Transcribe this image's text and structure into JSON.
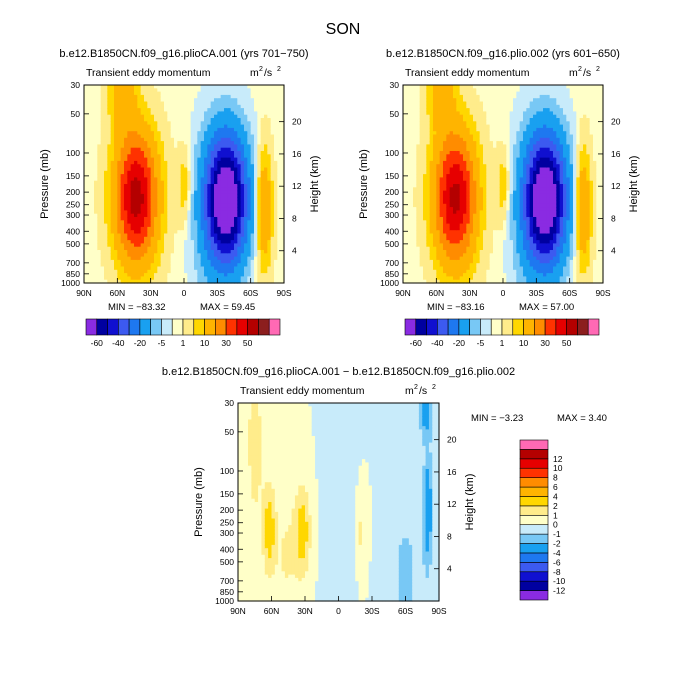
{
  "season": "SON",
  "contour_levels_top": [
    -60,
    -50,
    -40,
    -30,
    -20,
    -10,
    -5,
    -1,
    1,
    5,
    10,
    20,
    30,
    40,
    50,
    60
  ],
  "colors_top": [
    "#8a2be2",
    "#0000a0",
    "#1010d0",
    "#3c5af0",
    "#1e78f0",
    "#19a0f0",
    "#78c8f5",
    "#c8ebfa",
    "#ffffc8",
    "#ffec8b",
    "#ffd700",
    "#ffb400",
    "#ff8c00",
    "#ff3200",
    "#e60000",
    "#b40000",
    "#8c1e1e",
    "#ff69b4"
  ],
  "contour_levels_diff": [
    -12,
    -10,
    -8,
    -6,
    -4,
    -2,
    -1,
    0,
    1,
    2,
    4,
    6,
    8,
    10,
    12
  ],
  "colors_diff": [
    "#8a2be2",
    "#0000a0",
    "#1010d0",
    "#3c5af0",
    "#1e78f0",
    "#19a0f0",
    "#78c8f5",
    "#c8ebfa",
    "#ffffc8",
    "#ffec8b",
    "#ffd700",
    "#ffb400",
    "#ff8c00",
    "#ff3200",
    "#e60000",
    "#b40000",
    "#ff69b4"
  ],
  "chart_data": [
    {
      "type": "heatmap",
      "case": "b.e12.B1850CN.f09_g16.plioCA.001 (yrs 701−750)",
      "subtitle_left": "Transient eddy momentum",
      "units_base": "m",
      "units_sup1": "2",
      "units_mid": "/s",
      "units_sup2": "2",
      "ylabel": "Pressure (mb)",
      "ylabel_right": "Height (km)",
      "y_ticks": [
        "30",
        "50",
        "100",
        "150",
        "200",
        "250",
        "300",
        "400",
        "500",
        "700",
        "850",
        "1000"
      ],
      "y_values": [
        30,
        50,
        100,
        150,
        200,
        250,
        300,
        400,
        500,
        700,
        850,
        1000
      ],
      "height_ticks": [
        "20",
        "16",
        "12",
        "8",
        "4"
      ],
      "height_values": [
        20,
        16,
        12,
        8,
        4
      ],
      "x_ticks": [
        "90N",
        "60N",
        "30N",
        "0",
        "30S",
        "60S",
        "90S"
      ],
      "x_values": [
        90,
        60,
        30,
        0,
        -30,
        -60,
        -90
      ],
      "min_label": "MIN = −83.32",
      "max_label": "MAX = 59.45",
      "min": -83.32,
      "max": 59.45,
      "features": [
        {
          "lat": 43,
          "p": 220,
          "amp": 55,
          "wlat": 13,
          "wz": 5.5
        },
        {
          "lat": -38,
          "p": 230,
          "amp": -80,
          "wlat": 13,
          "wz": 5.5
        },
        {
          "lat": 0,
          "p": 180,
          "amp": 9,
          "wlat": 4,
          "wz": 3
        },
        {
          "lat": -72,
          "p": 270,
          "amp": 21,
          "wlat": 5,
          "wz": 5
        },
        {
          "lat": 55,
          "p": 35,
          "amp": 17,
          "wlat": 8,
          "wz": 3
        },
        {
          "lat": -20,
          "p": 500,
          "amp": -4,
          "wlat": 10,
          "wz": 9
        }
      ]
    },
    {
      "type": "heatmap",
      "case": "b.e12.B1850CN.f09_g16.plio.002 (yrs 601−650)",
      "subtitle_left": "Transient eddy momentum",
      "units_base": "m",
      "units_sup1": "2",
      "units_mid": "/s",
      "units_sup2": "2",
      "ylabel": "Pressure (mb)",
      "ylabel_right": "Height (km)",
      "y_ticks": [
        "30",
        "50",
        "100",
        "150",
        "200",
        "250",
        "300",
        "400",
        "500",
        "700",
        "850",
        "1000"
      ],
      "y_values": [
        30,
        50,
        100,
        150,
        200,
        250,
        300,
        400,
        500,
        700,
        850,
        1000
      ],
      "height_ticks": [
        "20",
        "16",
        "12",
        "8",
        "4"
      ],
      "height_values": [
        20,
        16,
        12,
        8,
        4
      ],
      "x_ticks": [
        "90N",
        "60N",
        "30N",
        "0",
        "30S",
        "60S",
        "90S"
      ],
      "x_values": [
        90,
        60,
        30,
        0,
        -30,
        -60,
        -90
      ],
      "min_label": "MIN = −83.16",
      "max_label": "MAX = 57.00",
      "min": -83.16,
      "max": 57.0,
      "features": [
        {
          "lat": 43,
          "p": 220,
          "amp": 53,
          "wlat": 13,
          "wz": 5.5
        },
        {
          "lat": -38,
          "p": 230,
          "amp": -80,
          "wlat": 13,
          "wz": 5.5
        },
        {
          "lat": 0,
          "p": 180,
          "amp": 9,
          "wlat": 4,
          "wz": 3
        },
        {
          "lat": -72,
          "p": 270,
          "amp": 21,
          "wlat": 5,
          "wz": 5
        },
        {
          "lat": 55,
          "p": 35,
          "amp": 17,
          "wlat": 8,
          "wz": 3
        },
        {
          "lat": -20,
          "p": 500,
          "amp": -4,
          "wlat": 10,
          "wz": 9
        }
      ]
    },
    {
      "type": "heatmap",
      "case": "b.e12.B1850CN.f09_g16.plioCA.001 − b.e12.B1850CN.f09_g16.plio.002",
      "subtitle_left": "Transient eddy momentum",
      "units_base": "m",
      "units_sup1": "2",
      "units_mid": "/s",
      "units_sup2": "2",
      "ylabel": "Pressure (mb)",
      "ylabel_right": "Height (km)",
      "y_ticks": [
        "30",
        "50",
        "100",
        "150",
        "200",
        "250",
        "300",
        "400",
        "500",
        "700",
        "850",
        "1000"
      ],
      "y_values": [
        30,
        50,
        100,
        150,
        200,
        250,
        300,
        400,
        500,
        700,
        850,
        1000
      ],
      "height_ticks": [
        "20",
        "16",
        "12",
        "8",
        "4"
      ],
      "height_values": [
        20,
        16,
        12,
        8,
        4
      ],
      "x_ticks": [
        "90N",
        "60N",
        "30N",
        "0",
        "30S",
        "60S",
        "90S"
      ],
      "x_values": [
        90,
        60,
        30,
        0,
        -30,
        -60,
        -90
      ],
      "min_label": "MIN = −3.23",
      "max_label": "MAX = 3.40",
      "min": -3.23,
      "max": 3.4,
      "features": [
        {
          "lat": 62,
          "p": 280,
          "amp": 2.6,
          "wlat": 4,
          "wz": 4
        },
        {
          "lat": 32,
          "p": 290,
          "amp": 2.6,
          "wlat": 5,
          "wz": 4
        },
        {
          "lat": 75,
          "p": 60,
          "amp": 1.4,
          "wlat": 6,
          "wz": 9
        },
        {
          "lat": 47,
          "p": 450,
          "amp": 1.1,
          "wlat": 8,
          "wz": 6
        },
        {
          "lat": -80,
          "p": 200,
          "amp": -3.2,
          "wlat": 3,
          "wz": 5
        },
        {
          "lat": -78,
          "p": 35,
          "amp": -2.6,
          "wlat": 4,
          "wz": 2.5
        },
        {
          "lat": -60,
          "p": 600,
          "amp": -1.3,
          "wlat": 10,
          "wz": 6
        },
        {
          "lat": -20,
          "p": 300,
          "amp": 1.2,
          "wlat": 3,
          "wz": 3
        },
        {
          "lat": 0,
          "p": 300,
          "amp": -0.9,
          "wlat": 8,
          "wz": 8
        }
      ]
    }
  ]
}
